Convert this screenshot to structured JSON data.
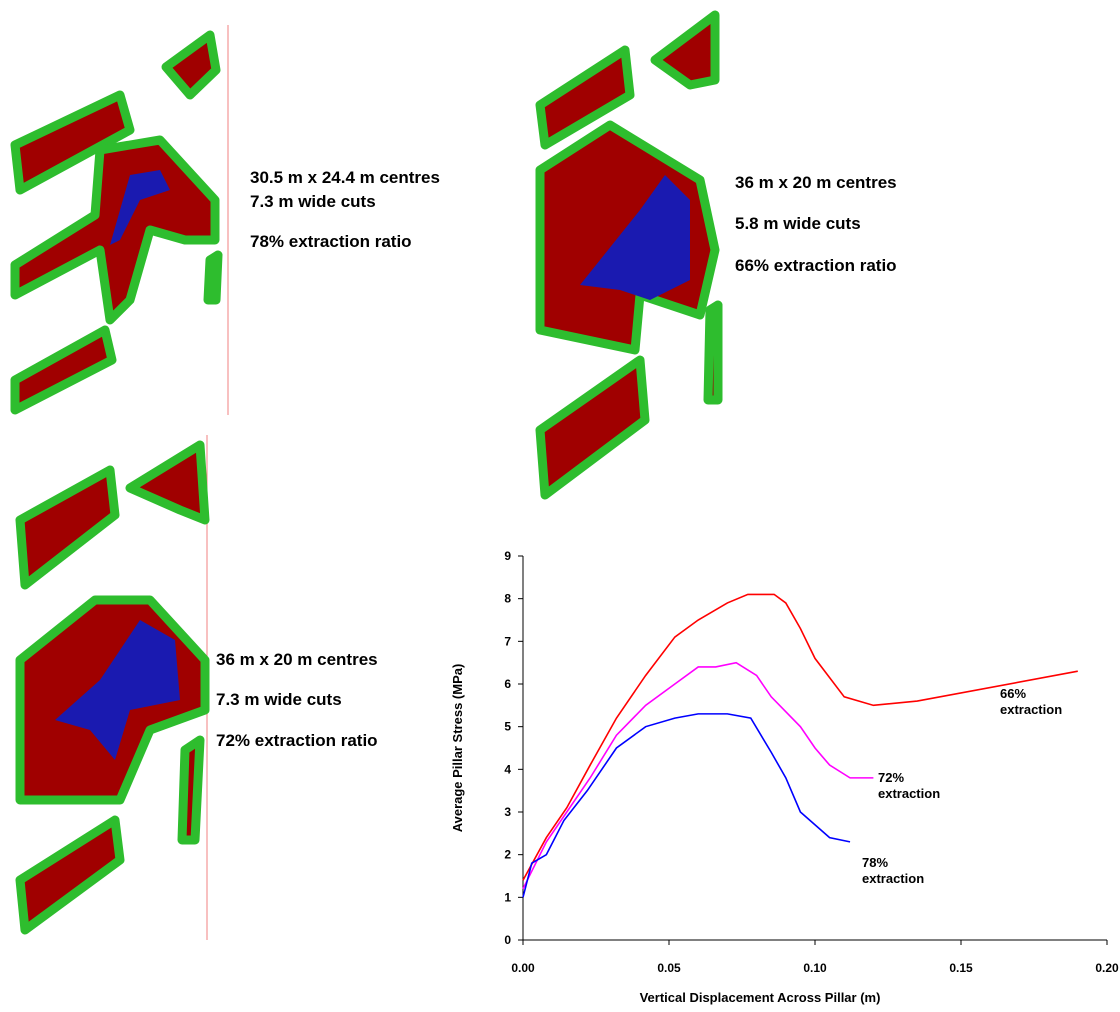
{
  "panels": [
    {
      "lines": [
        "30.5 m x 24.4 m centres",
        "7.3 m wide cuts",
        "78% extraction ratio"
      ]
    },
    {
      "lines": [
        "36 m x 20 m centres",
        "5.8 m wide cuts",
        "66% extraction ratio"
      ]
    },
    {
      "lines": [
        "36 m x 20 m centres",
        "7.3 m wide cuts",
        "72% extraction ratio"
      ]
    }
  ],
  "chart_data": {
    "type": "line",
    "x_label": "Vertical Displacement Across Pillar (m)",
    "y_label": "Average Pillar Stress (MPa)",
    "xlim": [
      0,
      0.2
    ],
    "ylim": [
      0,
      9
    ],
    "xticks": [
      {
        "value": 0,
        "label": "0.00"
      },
      0.05,
      {
        "value": 0.1,
        "label": "0.10"
      },
      0.15,
      {
        "value": 0.2,
        "label": "0.20"
      }
    ],
    "yticks": [
      0,
      1,
      2,
      3,
      4,
      5,
      6,
      7,
      8,
      9
    ],
    "series": [
      {
        "name": "66% extraction",
        "color": "#ff0000",
        "x": [
          0,
          0.008,
          0.015,
          0.023,
          0.032,
          0.042,
          0.052,
          0.06,
          0.07,
          0.077,
          0.086,
          0.09,
          0.095,
          0.1,
          0.11,
          0.12,
          0.135,
          0.19
        ],
        "values": [
          1.4,
          2.4,
          3.1,
          4.1,
          5.2,
          6.2,
          7.1,
          7.5,
          7.9,
          8.1,
          8.1,
          7.9,
          7.3,
          6.6,
          5.7,
          5.5,
          5.6,
          6.3
        ]
      },
      {
        "name": "72% extraction",
        "color": "#ff00ff",
        "x": [
          0,
          0.008,
          0.015,
          0.023,
          0.032,
          0.042,
          0.052,
          0.06,
          0.066,
          0.073,
          0.08,
          0.085,
          0.095,
          0.1,
          0.105,
          0.112,
          0.12
        ],
        "values": [
          1.2,
          2.3,
          3.0,
          3.8,
          4.8,
          5.5,
          6.0,
          6.4,
          6.4,
          6.5,
          6.2,
          5.7,
          5.0,
          4.5,
          4.1,
          3.8,
          3.8
        ]
      },
      {
        "name": "78% extraction",
        "color": "#0000ff",
        "x": [
          0,
          0.003,
          0.008,
          0.014,
          0.022,
          0.032,
          0.042,
          0.052,
          0.06,
          0.07,
          0.078,
          0.085,
          0.09,
          0.095,
          0.105,
          0.112
        ],
        "values": [
          1.0,
          1.8,
          2.0,
          2.8,
          3.5,
          4.5,
          5.0,
          5.2,
          5.3,
          5.3,
          5.2,
          4.4,
          3.8,
          3.0,
          2.4,
          2.3
        ]
      }
    ]
  }
}
